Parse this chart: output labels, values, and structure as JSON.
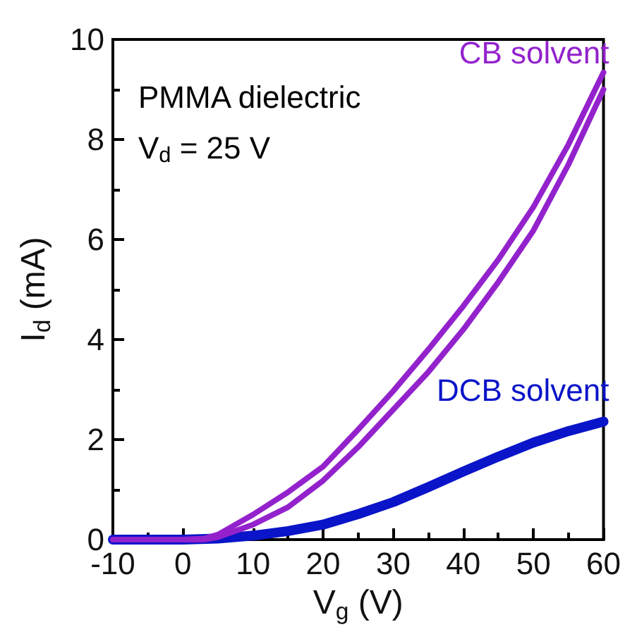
{
  "chart_data": {
    "type": "line",
    "xlabel": "V$_{g}$ (V)",
    "ylabel": "I$_{d}$ (mA)",
    "annotations": [
      "PMMA dielectric",
      "V$_{d}$ = 25 V"
    ],
    "xlim": [
      -10,
      60
    ],
    "xticks": [
      -10,
      0,
      10,
      20,
      30,
      40,
      50,
      60
    ],
    "ylim": [
      0,
      10
    ],
    "yticks": [
      0,
      2,
      4,
      6,
      8,
      10
    ],
    "grid": false,
    "legend": false,
    "marker": "none",
    "line_style": "solid",
    "series": [
      {
        "name": "CB solvent",
        "color": "#9322cc",
        "x": [
          -10,
          0,
          3,
          5,
          10,
          15,
          20,
          25,
          30,
          35,
          40,
          45,
          50,
          55,
          60
        ],
        "values": [
          0,
          0,
          0.02,
          0.1,
          0.5,
          0.95,
          1.46,
          2.2,
          2.97,
          3.8,
          4.67,
          5.6,
          6.65,
          7.9,
          9.34
        ]
      },
      {
        "color": "#9322cc",
        "x": [
          -10,
          0,
          3,
          5,
          10,
          15,
          20,
          25,
          30,
          35,
          40,
          45,
          50,
          55,
          60
        ],
        "values": [
          0,
          0,
          0,
          0.05,
          0.3,
          0.65,
          1.18,
          1.85,
          2.6,
          3.35,
          4.2,
          5.15,
          6.18,
          7.5,
          9.0
        ]
      },
      {
        "name": "DCB solvent",
        "color": "#0a14c8",
        "x": [
          -10,
          0,
          5,
          10,
          15,
          20,
          25,
          30,
          35,
          40,
          45,
          50,
          55,
          60
        ],
        "values": [
          0,
          0,
          0.02,
          0.08,
          0.17,
          0.3,
          0.51,
          0.75,
          1.05,
          1.36,
          1.66,
          1.94,
          2.17,
          2.36
        ]
      }
    ]
  }
}
